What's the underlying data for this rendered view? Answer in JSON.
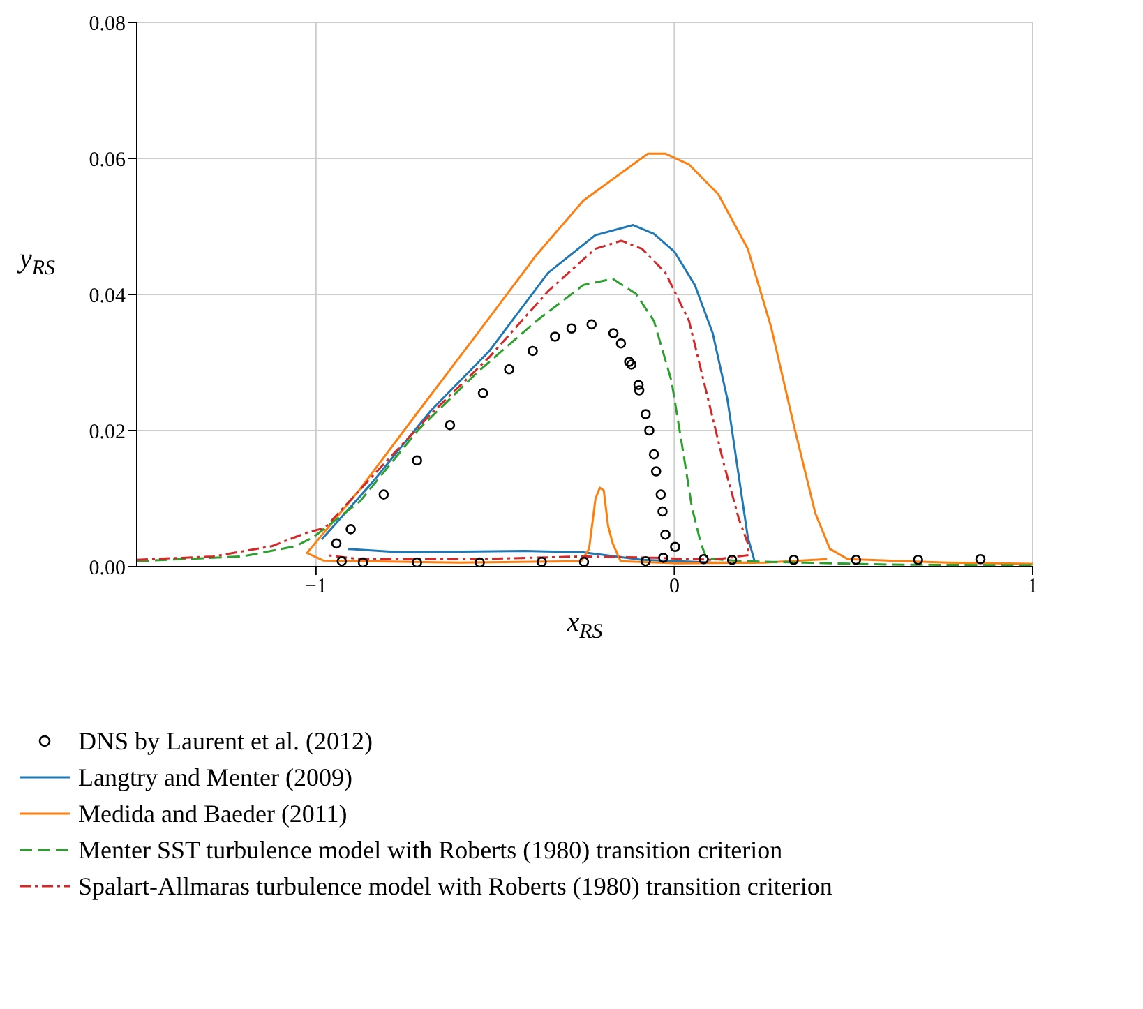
{
  "chart_data": {
    "type": "line",
    "xlabel": "x$_{RS}$",
    "ylabel": "y$_{RS}$",
    "xlim": [
      -1.5,
      1
    ],
    "ylim": [
      0,
      0.08
    ],
    "xticks": [
      {
        "value": -1,
        "label": "−1"
      },
      {
        "value": 0,
        "label": "0"
      },
      {
        "value": 1,
        "label": "1"
      }
    ],
    "yticks": [
      {
        "value": 0,
        "label": "0.00"
      },
      {
        "value": 0.02,
        "label": "0.02"
      },
      {
        "value": 0.04,
        "label": "0.04"
      },
      {
        "value": 0.06,
        "label": "0.06"
      },
      {
        "value": 0.08,
        "label": "0.08"
      }
    ],
    "grid": true,
    "legend": "bottom",
    "series": [
      {
        "name": "DNS by Laurent et al. (2012)",
        "type": "scatter",
        "marker": "circle",
        "color": "#000000",
        "x": [
          -0.943,
          -0.903,
          -0.811,
          -0.718,
          -0.626,
          -0.534,
          -0.461,
          -0.395,
          -0.333,
          -0.287,
          -0.231,
          -0.17,
          -0.149,
          -0.126,
          -0.12,
          -0.1,
          -0.098,
          -0.08,
          -0.07,
          -0.057,
          -0.051,
          -0.038,
          -0.033,
          -0.025,
          0.002,
          -0.031,
          -0.08,
          0.082,
          0.161,
          0.333,
          0.507,
          0.68,
          0.854,
          -0.928,
          -0.869,
          -0.718,
          -0.543,
          -0.37,
          -0.252
        ],
        "values": [
          0.0034,
          0.0055,
          0.0106,
          0.0156,
          0.0208,
          0.0255,
          0.029,
          0.0317,
          0.0338,
          0.035,
          0.0356,
          0.0343,
          0.0328,
          0.0301,
          0.0297,
          0.0267,
          0.0259,
          0.0224,
          0.02,
          0.0165,
          0.014,
          0.0106,
          0.0081,
          0.0047,
          0.0029,
          0.0013,
          0.0008,
          0.0011,
          0.001,
          0.001,
          0.001,
          0.001,
          0.0011,
          0.0008,
          0.0006,
          0.0006,
          0.0006,
          0.0007,
          0.0007
        ]
      },
      {
        "name": "Langtry and Menter (2009)",
        "line_style": "solid",
        "color": "#1f77b4",
        "x": [
          -0.91,
          -0.762,
          -0.418,
          -0.254,
          -0.09,
          0.107,
          0.225,
          0.205,
          0.18,
          0.148,
          0.107,
          0.057,
          0,
          -0.057,
          -0.115,
          -0.221,
          -0.352,
          -0.516,
          -0.68,
          -0.844,
          -0.984
        ],
        "values": [
          0.0026,
          0.0021,
          0.0023,
          0.0021,
          0.001,
          0.0006,
          0.0006,
          0.0043,
          0.0132,
          0.0246,
          0.0343,
          0.0414,
          0.0463,
          0.0489,
          0.0502,
          0.0487,
          0.0432,
          0.0317,
          0.0229,
          0.0123,
          0.004
        ]
      },
      {
        "name": "Medida and Baeder (2011)",
        "line_style": "solid",
        "color": "#ff7f0e",
        "x": [
          1,
          0.762,
          0.484,
          0.434,
          0.393,
          0.336,
          0.27,
          0.205,
          0.123,
          0.041,
          -0.025,
          -0.074,
          -0.254,
          -0.385,
          -0.549,
          -0.713,
          -0.877,
          -1.025,
          -0.98,
          -0.6,
          -0.26,
          -0.238,
          -0.22,
          -0.208,
          -0.197,
          -0.185,
          -0.172,
          -0.15,
          0,
          0.25,
          0.426
        ],
        "values": [
          0.0004,
          0.0006,
          0.0011,
          0.0026,
          0.0079,
          0.0202,
          0.0352,
          0.0467,
          0.0547,
          0.0591,
          0.0607,
          0.0607,
          0.0538,
          0.0458,
          0.0343,
          0.0229,
          0.0114,
          0.002,
          0.0009,
          0.0006,
          0.0008,
          0.0026,
          0.01,
          0.0116,
          0.0112,
          0.006,
          0.0034,
          0.0008,
          0.0005,
          0.0006,
          0.0011
        ]
      },
      {
        "name": "Menter SST turbulence model with Roberts (1980) transition criterion",
        "line_style": "dashed",
        "color": "#2ca02c",
        "x": [
          -1.5,
          -1.205,
          -1.057,
          -1.008,
          -0.877,
          -0.713,
          -0.549,
          -0.385,
          -0.254,
          -0.172,
          -0.107,
          -0.057,
          -0.008,
          0.025,
          0.049,
          0.074,
          0.09,
          0.189,
          0.598,
          1
        ],
        "values": [
          0.0008,
          0.0015,
          0.003,
          0.0043,
          0.0096,
          0.0202,
          0.0286,
          0.0361,
          0.0414,
          0.0423,
          0.0401,
          0.0361,
          0.0273,
          0.0167,
          0.0087,
          0.0034,
          0.0012,
          0.0008,
          0.0003,
          0.0002
        ]
      },
      {
        "name": "Spalart-Allmaras turbulence model with Roberts (1980) transition criterion",
        "line_style": "dashdot",
        "color": "#d62728",
        "x": [
          -1.5,
          -1.287,
          -1.123,
          -1.025,
          -0.975,
          -0.844,
          -0.68,
          -0.516,
          -0.352,
          -0.221,
          -0.148,
          -0.09,
          -0.025,
          0.041,
          0.09,
          0.139,
          0.18,
          0.205,
          0.208,
          0.107,
          -0.057,
          -0.254,
          -0.549,
          -0.877,
          -0.975
        ],
        "values": [
          0.001,
          0.0015,
          0.003,
          0.005,
          0.0057,
          0.0132,
          0.0224,
          0.0308,
          0.0405,
          0.0467,
          0.0479,
          0.0467,
          0.0432,
          0.0361,
          0.0255,
          0.0149,
          0.007,
          0.0034,
          0.0017,
          0.001,
          0.0013,
          0.0015,
          0.0011,
          0.0011,
          0.0017
        ]
      }
    ]
  }
}
